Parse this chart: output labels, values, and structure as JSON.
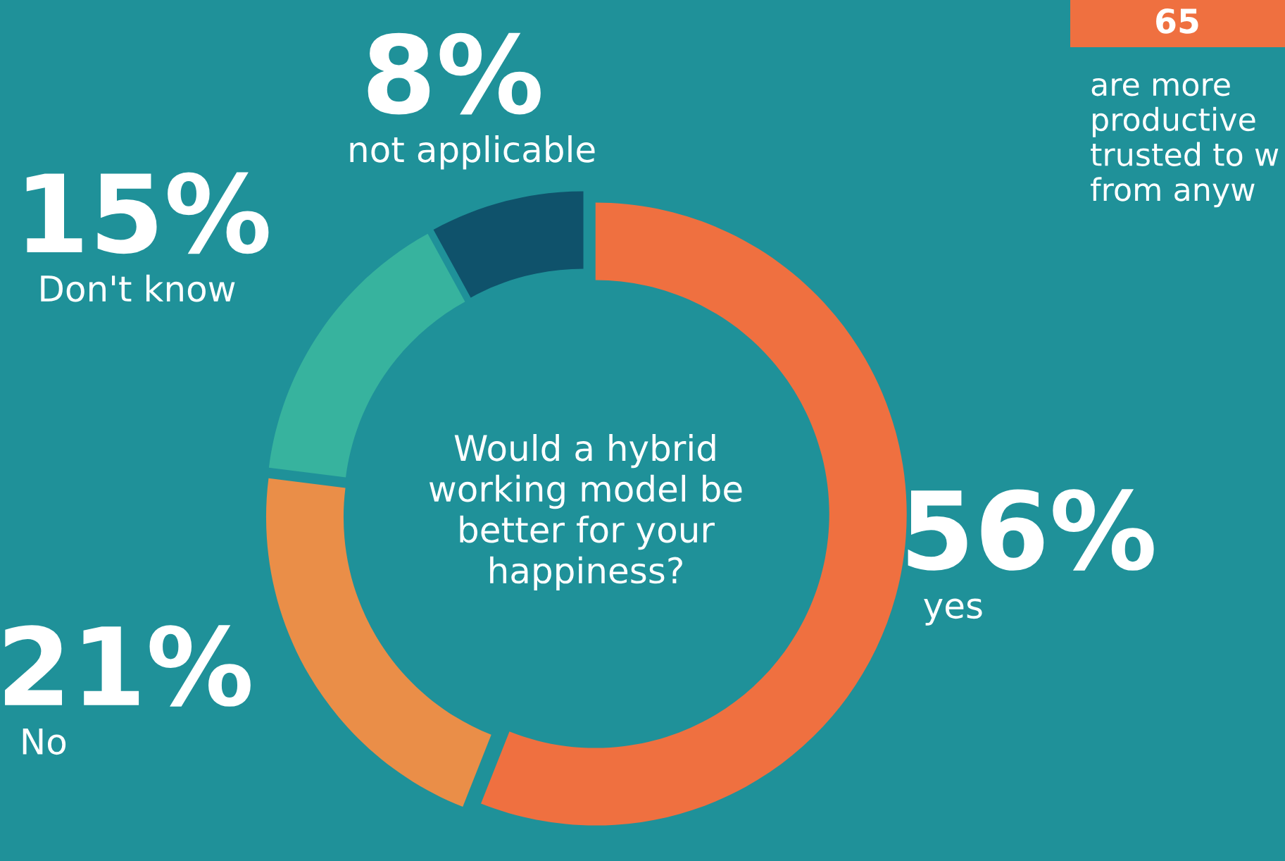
{
  "chart_data": {
    "type": "donut",
    "title": "Would a hybrid working model be better for your happiness?",
    "categories": [
      "yes",
      "No",
      "Don't know",
      "not applicable"
    ],
    "values": [
      56,
      21,
      15,
      8
    ],
    "value_labels": [
      "56%",
      "21%",
      "15%",
      "8%"
    ],
    "colors": [
      "#ef7040",
      "#ea8e48",
      "#37b39e",
      "#0f526b"
    ],
    "annotations": [
      "65",
      "are more\nproductive\ntrusted to w\nfrom anyw"
    ]
  }
}
